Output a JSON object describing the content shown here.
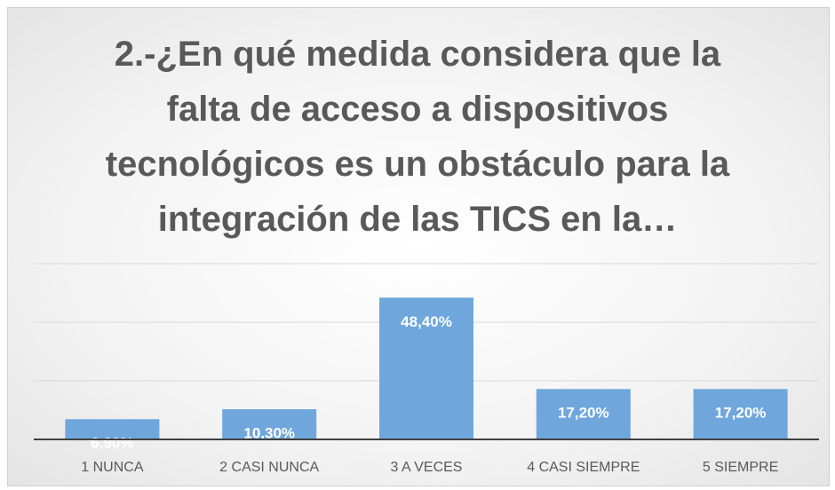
{
  "chart_data": {
    "type": "bar",
    "title": "2.-¿En qué medida considera que la falta de acceso a dispositivos tecnológicos es un obstáculo para la integración de las TICS en la…",
    "categories": [
      "1 NUNCA",
      "2 CASI NUNCA",
      "3 A VECES",
      "4 CASI SIEMPRE",
      "5 SIEMPRE"
    ],
    "values": [
      6.9,
      10.3,
      48.4,
      17.2,
      17.2
    ],
    "value_labels": [
      "6,90%",
      "10,30%",
      "48,40%",
      "17,20%",
      "17,20%"
    ],
    "color": "#6fa7dc",
    "ylim": [
      0,
      60
    ],
    "yticks": [
      0,
      20,
      40,
      60
    ],
    "grid": true
  }
}
